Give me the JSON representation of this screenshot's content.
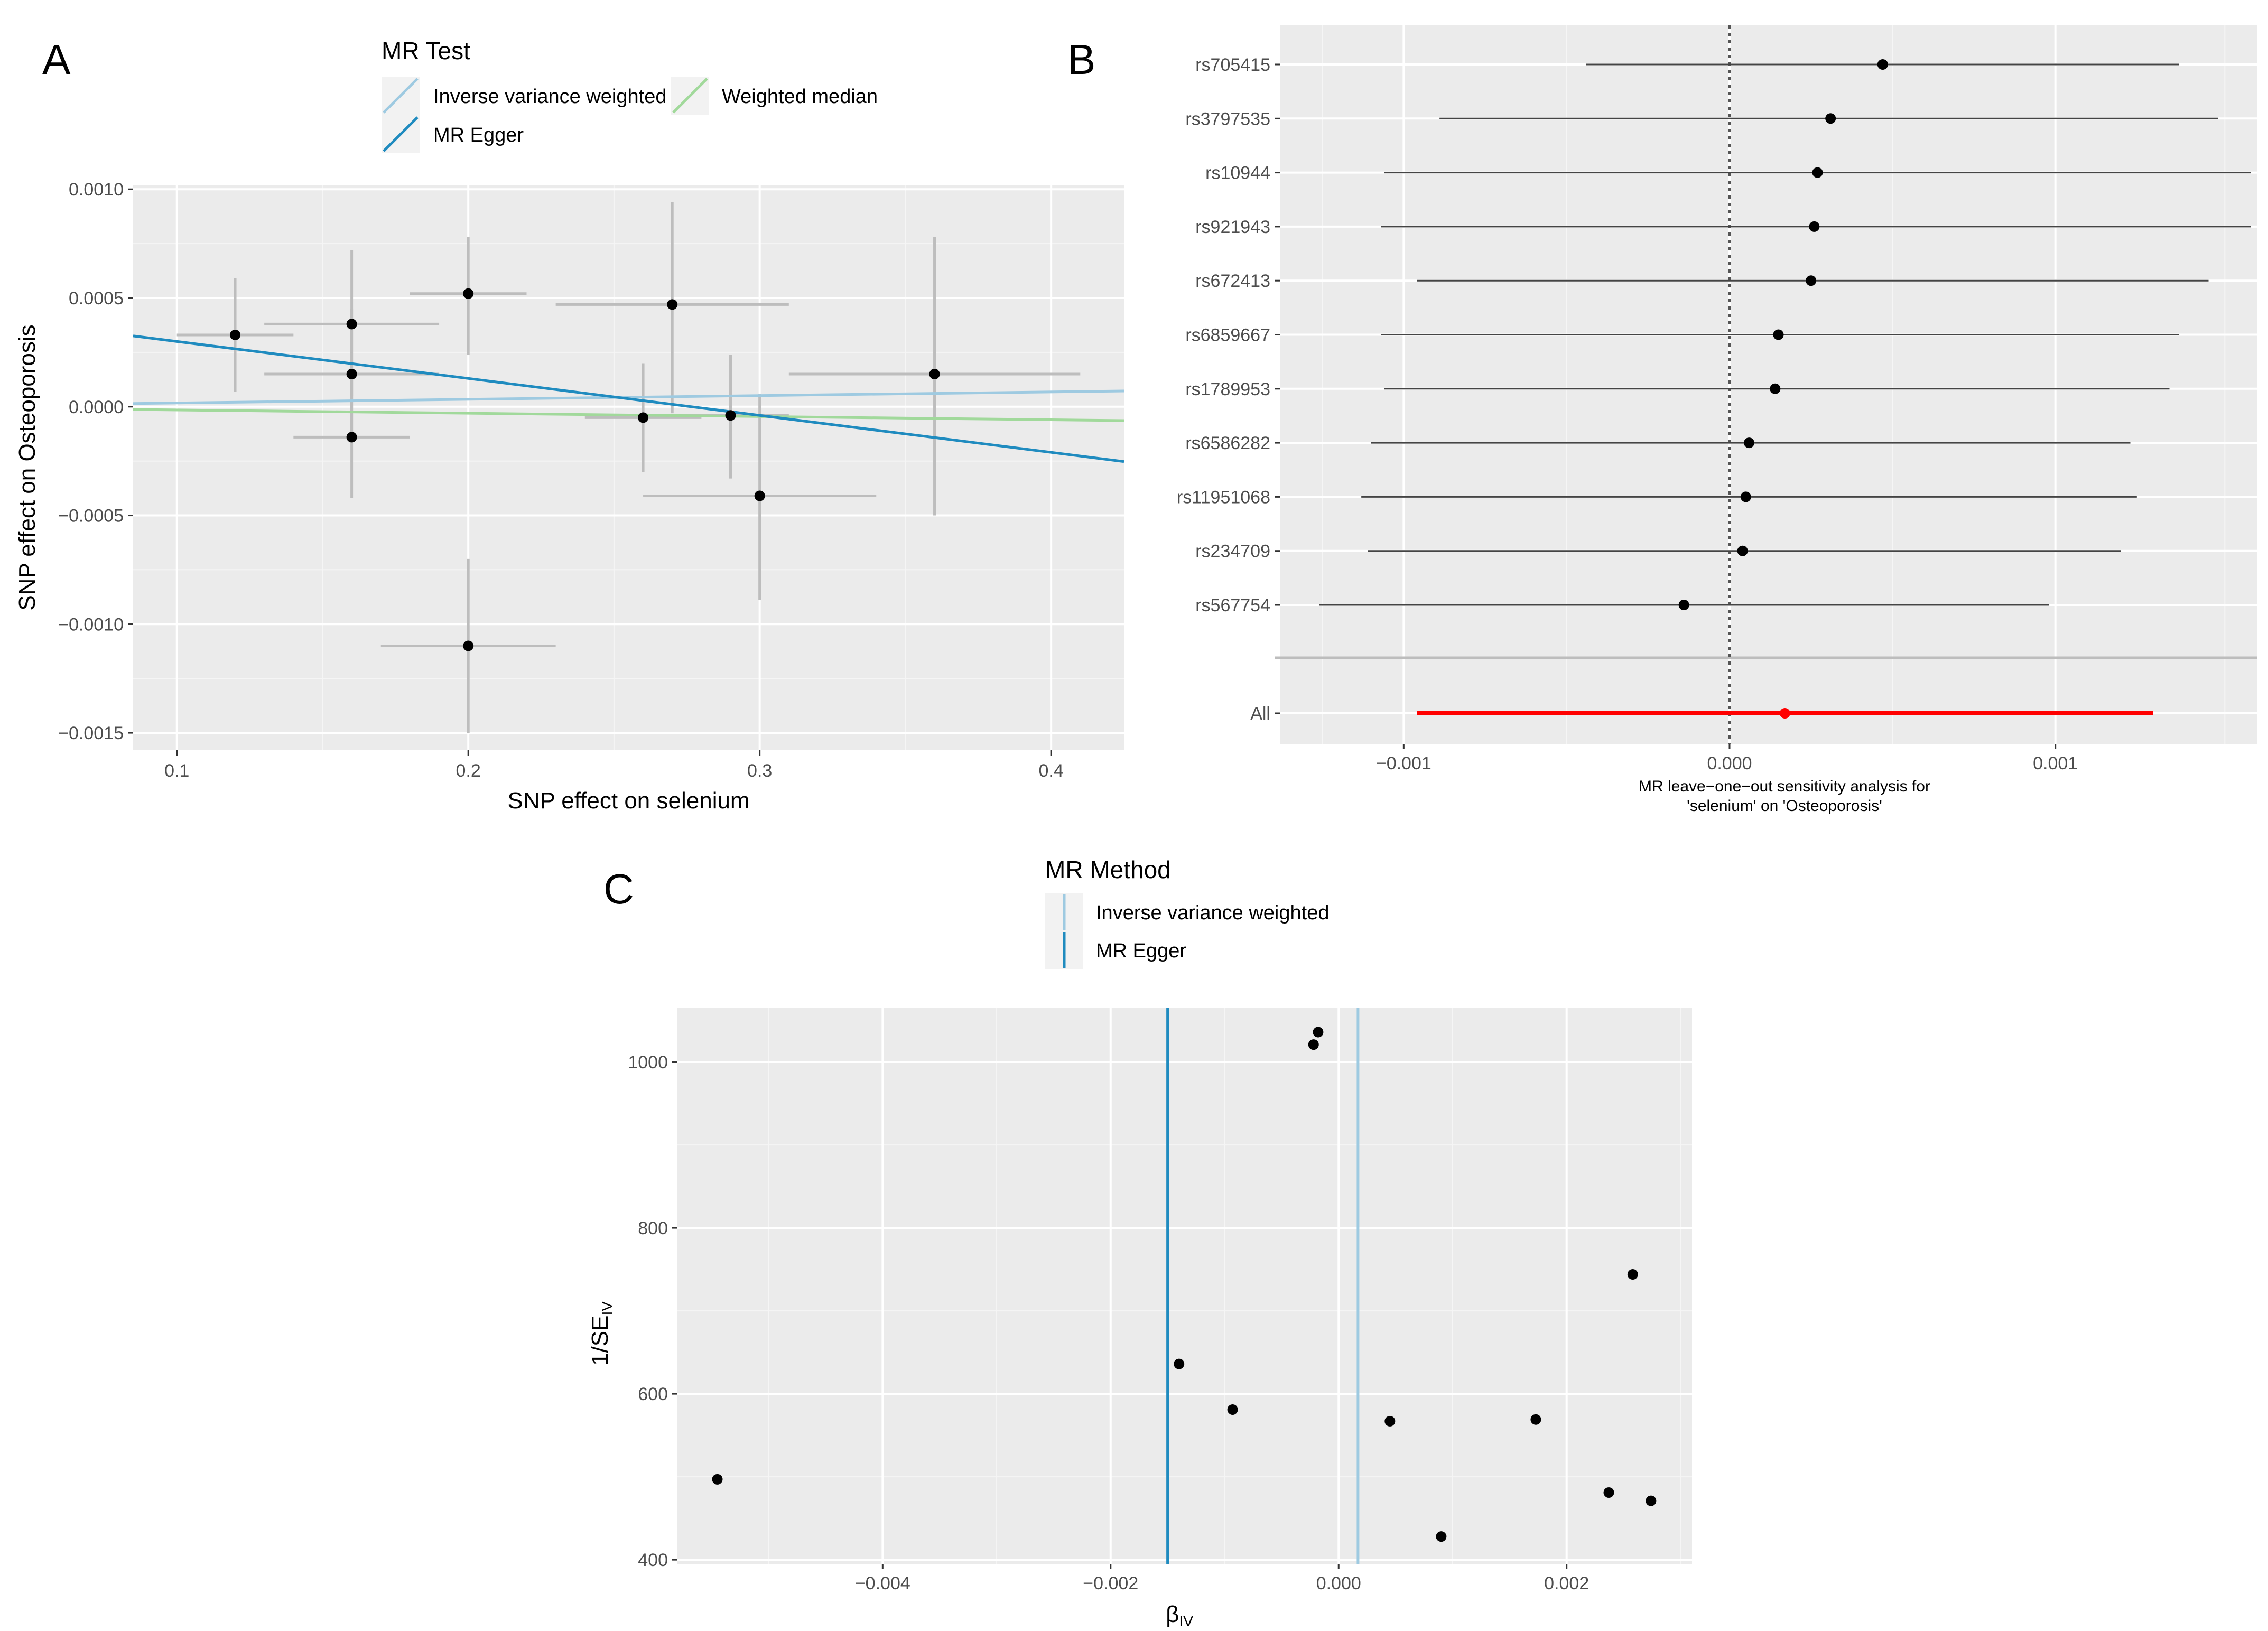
{
  "chart_data": [
    {
      "panel": "A",
      "type": "scatter",
      "xlabel": "SNP effect on selenium",
      "ylabel": "SNP effect on Osteoporosis",
      "xlim": [
        0.085,
        0.425
      ],
      "ylim": [
        -0.00158,
        0.00102
      ],
      "xticks": [
        0.1,
        0.2,
        0.3,
        0.4
      ],
      "xtick_labels": [
        "0.1",
        "0.2",
        "0.3",
        "0.4"
      ],
      "yticks": [
        0.001,
        0.0005,
        0.0,
        -0.0005,
        -0.001,
        -0.0015
      ],
      "ytick_labels": [
        "0.0010",
        "0.0005",
        "0.0000",
        "−0.0005",
        "−0.0010",
        "−0.0015"
      ],
      "legend": {
        "title": "MR Test",
        "entries": [
          {
            "name": "Inverse variance weighted",
            "color": "#9ecae1"
          },
          {
            "name": "Weighted median",
            "color": "#a1d99b"
          },
          {
            "name": "MR Egger",
            "color": "#1f8bbf"
          }
        ]
      },
      "points": [
        {
          "x": 0.12,
          "y": 0.00033,
          "xlo": 0.1,
          "xhi": 0.14,
          "ylo": 7e-05,
          "yhi": 0.00059
        },
        {
          "x": 0.16,
          "y": 0.00038,
          "xlo": 0.13,
          "xhi": 0.19,
          "ylo": 5e-05,
          "yhi": 0.00072
        },
        {
          "x": 0.16,
          "y": 0.00015,
          "xlo": 0.13,
          "xhi": 0.19,
          "ylo": -0.00015,
          "yhi": 0.00045
        },
        {
          "x": 0.16,
          "y": -0.00014,
          "xlo": 0.14,
          "xhi": 0.18,
          "ylo": -0.00042,
          "yhi": 0.00014
        },
        {
          "x": 0.2,
          "y": 0.00052,
          "xlo": 0.18,
          "xhi": 0.22,
          "ylo": 0.00024,
          "yhi": 0.00078
        },
        {
          "x": 0.2,
          "y": -0.0011,
          "xlo": 0.17,
          "xhi": 0.23,
          "ylo": -0.0015,
          "yhi": -0.0007
        },
        {
          "x": 0.26,
          "y": -5e-05,
          "xlo": 0.24,
          "xhi": 0.28,
          "ylo": -0.0003,
          "yhi": 0.0002
        },
        {
          "x": 0.27,
          "y": 0.00047,
          "xlo": 0.23,
          "xhi": 0.31,
          "ylo": -3e-05,
          "yhi": 0.00094
        },
        {
          "x": 0.29,
          "y": -4e-05,
          "xlo": 0.27,
          "xhi": 0.31,
          "ylo": -0.00033,
          "yhi": 0.00024
        },
        {
          "x": 0.3,
          "y": -0.00041,
          "xlo": 0.26,
          "xhi": 0.34,
          "ylo": -0.00089,
          "yhi": 6e-05
        },
        {
          "x": 0.36,
          "y": 0.00015,
          "xlo": 0.31,
          "xhi": 0.41,
          "ylo": -0.0005,
          "yhi": 0.00078
        }
      ],
      "lines": [
        {
          "name": "Inverse variance weighted",
          "intercept": 0.0,
          "slope": 0.00017,
          "color": "#9ecae1"
        },
        {
          "name": "Weighted median",
          "intercept": 0.0,
          "slope": -0.00015,
          "color": "#a1d99b"
        },
        {
          "name": "MR Egger",
          "intercept": 0.00047,
          "slope": -0.0017,
          "color": "#1f8bbf"
        }
      ]
    },
    {
      "panel": "B",
      "type": "forest",
      "xlabel_lines": [
        "MR leave−one−out sensitivity analysis for",
        "'selenium' on 'Osteoporosis'"
      ],
      "xlim": [
        -0.00138,
        0.00162
      ],
      "xticks": [
        -0.001,
        0.0,
        0.001
      ],
      "xtick_labels": [
        "−0.001",
        "0.000",
        "0.001"
      ],
      "rows": [
        {
          "label": "rs705415",
          "est": 0.00047,
          "lo": -0.00044,
          "hi": 0.00138
        },
        {
          "label": "rs3797535",
          "est": 0.00031,
          "lo": -0.00089,
          "hi": 0.0015
        },
        {
          "label": "rs10944",
          "est": 0.00027,
          "lo": -0.00106,
          "hi": 0.0016
        },
        {
          "label": "rs921943",
          "est": 0.00026,
          "lo": -0.00107,
          "hi": 0.0016
        },
        {
          "label": "rs672413",
          "est": 0.00025,
          "lo": -0.00096,
          "hi": 0.00147
        },
        {
          "label": "rs6859667",
          "est": 0.00015,
          "lo": -0.00107,
          "hi": 0.00138
        },
        {
          "label": "rs1789953",
          "est": 0.00014,
          "lo": -0.00106,
          "hi": 0.00135
        },
        {
          "label": "rs6586282",
          "est": 6e-05,
          "lo": -0.0011,
          "hi": 0.00123
        },
        {
          "label": "rs11951068",
          "est": 5e-05,
          "lo": -0.00113,
          "hi": 0.00125
        },
        {
          "label": "rs234709",
          "est": 4e-05,
          "lo": -0.00111,
          "hi": 0.0012
        },
        {
          "label": "rs567754",
          "est": -0.00014,
          "lo": -0.00126,
          "hi": 0.00098
        }
      ],
      "overall": {
        "label": "All",
        "est": 0.00017,
        "lo": -0.00096,
        "hi": 0.0013,
        "color": "#ff0000"
      }
    },
    {
      "panel": "C",
      "type": "scatter",
      "xlabel": "β",
      "xlabel_sub": "IV",
      "ylabel": "1/SE",
      "ylabel_sub": "IV",
      "xlim": [
        -0.0058,
        0.0031
      ],
      "ylim": [
        395,
        1065
      ],
      "xticks": [
        -0.004,
        -0.002,
        0.0,
        0.002
      ],
      "xtick_labels": [
        "−0.004",
        "−0.002",
        "0.000",
        "0.002"
      ],
      "yticks": [
        400,
        600,
        800,
        1000
      ],
      "ytick_labels": [
        "400",
        "600",
        "800",
        "1000"
      ],
      "legend": {
        "title": "MR Method",
        "entries": [
          {
            "name": "Inverse variance weighted",
            "color": "#9ecae1"
          },
          {
            "name": "MR Egger",
            "color": "#1f8bbf"
          }
        ]
      },
      "vlines": [
        {
          "name": "MR Egger",
          "x": -0.0015,
          "color": "#1f8bbf"
        },
        {
          "name": "Inverse variance weighted",
          "x": 0.00017,
          "color": "#9ecae1"
        }
      ],
      "points": [
        {
          "x": -0.00545,
          "y": 497
        },
        {
          "x": -0.0014,
          "y": 636
        },
        {
          "x": -0.00093,
          "y": 581
        },
        {
          "x": -0.00022,
          "y": 1021
        },
        {
          "x": -0.00018,
          "y": 1036
        },
        {
          "x": 0.00045,
          "y": 567
        },
        {
          "x": 0.0009,
          "y": 428
        },
        {
          "x": 0.00173,
          "y": 569
        },
        {
          "x": 0.00237,
          "y": 481
        },
        {
          "x": 0.00258,
          "y": 744
        },
        {
          "x": 0.00274,
          "y": 471
        }
      ]
    }
  ]
}
